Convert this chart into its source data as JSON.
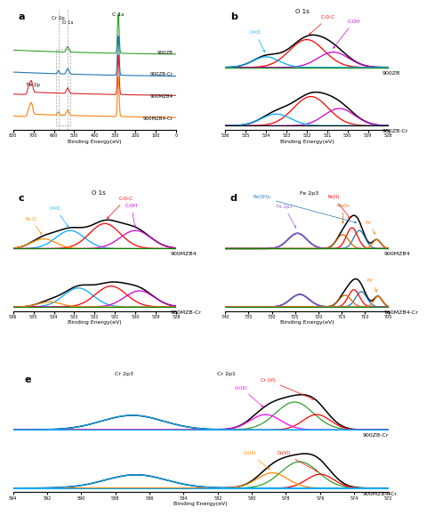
{
  "colors_a": [
    "#2ca02c",
    "#1f77b4",
    "#d62728",
    "#ff7f0e"
  ],
  "labels_a": [
    "900ZB",
    "900ZB-Cr",
    "900MZB4",
    "900MZB4-Cr"
  ],
  "panel_b": {
    "s1_label": "900ZB",
    "s2_label": "900ZB-Cr",
    "colors": {
      "envelope": "#000000",
      "COC": "#ff0000",
      "COH": "#cc00cc",
      "CO": "#00aaff",
      "baseline_s1": "#008000",
      "baseline_s2": "#000000"
    }
  },
  "panel_c": {
    "s1_label": "900MZB4",
    "s2_label": "900MZB-Cr",
    "colors": {
      "envelope": "#000000",
      "COC": "#ff0000",
      "COH": "#cc00cc",
      "CO": "#00aaff",
      "FeO": "#ff8c00",
      "baseline": "#008000"
    }
  },
  "panel_d": {
    "s1_label": "900MZB4",
    "s2_label": "900MZB4-Cr",
    "colors": {
      "envelope": "#000000",
      "FeOH2": "#1f77b4",
      "Fe2p1": "#8b5cf6",
      "FeII": "#ff0000",
      "Fe2O3": "#cc6600",
      "Fe0": "#ff7f0e",
      "baseline": "#008000"
    }
  },
  "panel_e": {
    "s1_label": "900ZB-Cr",
    "s2_label": "900MZB4-Cr",
    "colors": {
      "envelope": "#000000",
      "Cr2p3": "#2ca02c",
      "CrVI": "#ff0000",
      "CrIII": "#ff00ff",
      "CrVI2": "#ff0000",
      "CrIII2": "#ff8c00",
      "baseline": "#00aaff"
    }
  }
}
